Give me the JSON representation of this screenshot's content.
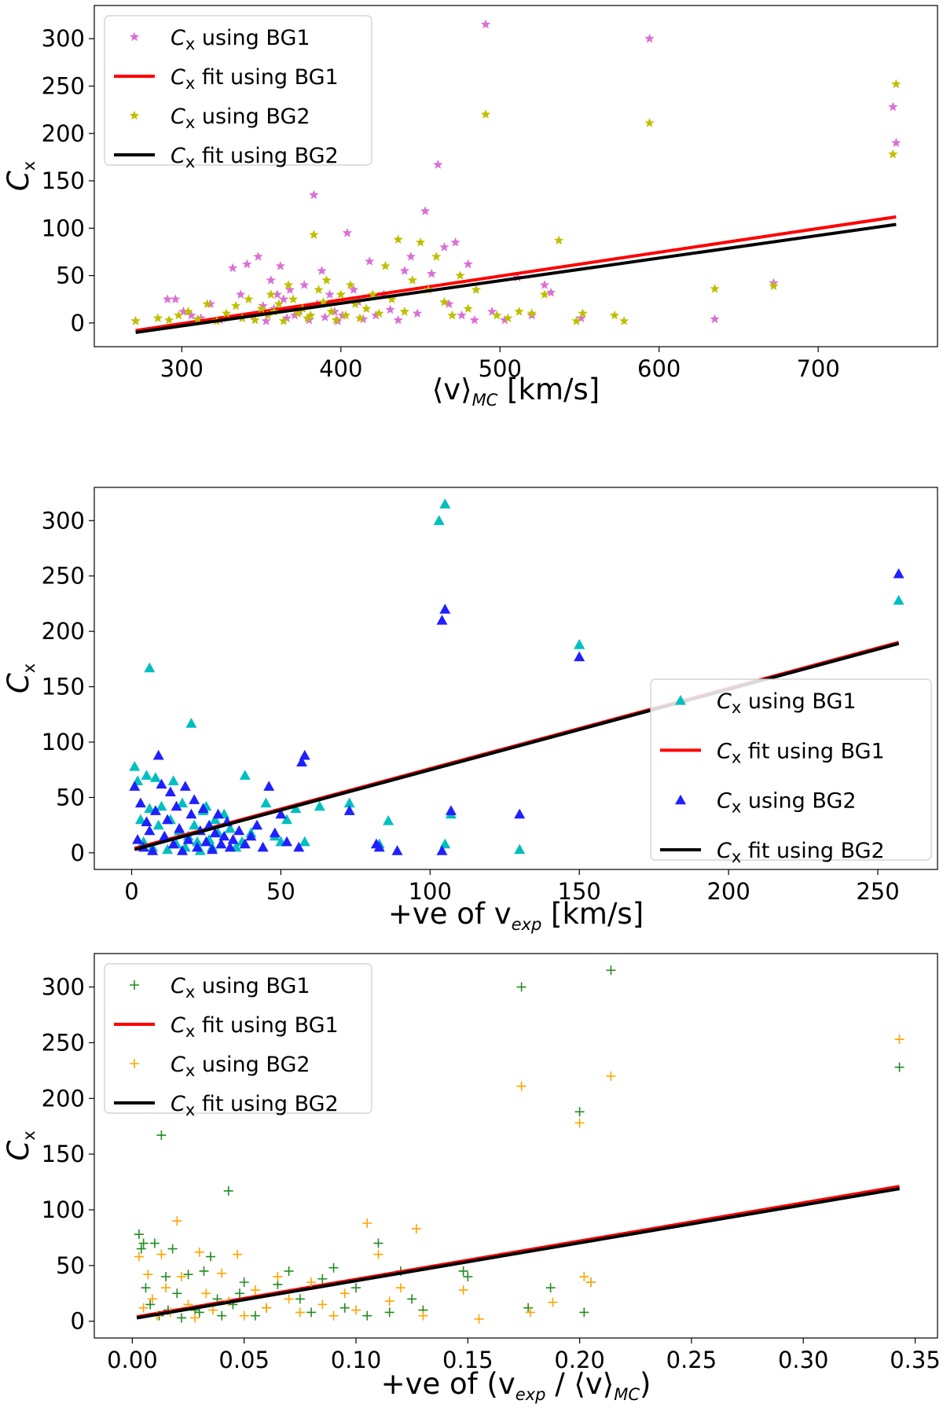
{
  "chart_data": [
    {
      "type": "scatter",
      "xlabel": "⟨v⟩",
      "xlabel_sub": "MC",
      "xlabel_unit": " [km/s]",
      "ylabel": "C",
      "ylabel_sub": "x",
      "xlim": [
        245,
        775
      ],
      "ylim": [
        -25,
        335
      ],
      "xticks": [
        300,
        400,
        500,
        600,
        700
      ],
      "yticks": [
        0,
        50,
        100,
        150,
        200,
        250,
        300
      ],
      "legend_position": "upper-left",
      "series": [
        {
          "name": "C",
          "name_sub": "x",
          "label_rest": " using BG1",
          "kind": "points",
          "marker": "star",
          "color": "#da70d6",
          "x": [
            271,
            291,
            296,
            301,
            306,
            312,
            318,
            324,
            332,
            337,
            341,
            345,
            348,
            351,
            353,
            356,
            358,
            360,
            362,
            364,
            366,
            368,
            371,
            374,
            377,
            380,
            383,
            385,
            388,
            390,
            393,
            396,
            398,
            401,
            404,
            408,
            411,
            414,
            418,
            422,
            427,
            431,
            436,
            440,
            444,
            448,
            453,
            457,
            461,
            465,
            468,
            472,
            476,
            480,
            484,
            491,
            495,
            503,
            511,
            520,
            528,
            532,
            551,
            594,
            635,
            672,
            747,
            749
          ],
          "y": [
            2,
            25,
            25,
            12,
            8,
            5,
            20,
            3,
            58,
            30,
            62,
            8,
            70,
            18,
            2,
            45,
            15,
            30,
            60,
            25,
            5,
            35,
            8,
            12,
            40,
            3,
            135,
            20,
            55,
            6,
            30,
            12,
            2,
            8,
            95,
            35,
            22,
            4,
            65,
            8,
            30,
            14,
            3,
            55,
            70,
            10,
            118,
            52,
            167,
            80,
            20,
            85,
            8,
            62,
            3,
            315,
            12,
            3,
            48,
            8,
            40,
            32,
            5,
            300,
            4,
            42,
            228,
            190
          ]
        },
        {
          "name": "C",
          "name_sub": "x",
          "label_rest": " fit using BG1",
          "kind": "line",
          "color": "#ff0000",
          "width": 4,
          "x": [
            271,
            749
          ],
          "y": [
            -8,
            112
          ]
        },
        {
          "name": "C",
          "name_sub": "x",
          "label_rest": " using BG2",
          "kind": "points",
          "marker": "star",
          "color": "#bfbf00",
          "x": [
            271,
            285,
            292,
            298,
            304,
            310,
            316,
            322,
            328,
            334,
            338,
            342,
            346,
            350,
            354,
            356,
            358,
            361,
            364,
            367,
            370,
            373,
            376,
            379,
            381,
            383,
            386,
            389,
            391,
            394,
            397,
            400,
            403,
            406,
            409,
            412,
            416,
            420,
            424,
            428,
            432,
            436,
            440,
            445,
            450,
            455,
            460,
            465,
            470,
            475,
            480,
            485,
            491,
            498,
            505,
            512,
            520,
            528,
            537,
            548,
            552,
            572,
            578,
            594,
            635,
            672,
            747,
            749
          ],
          "y": [
            2,
            5,
            3,
            8,
            12,
            4,
            20,
            2,
            10,
            18,
            5,
            25,
            3,
            15,
            8,
            30,
            12,
            20,
            2,
            40,
            25,
            10,
            15,
            5,
            8,
            93,
            35,
            22,
            45,
            12,
            3,
            30,
            8,
            40,
            20,
            5,
            15,
            30,
            10,
            60,
            25,
            88,
            12,
            45,
            85,
            35,
            70,
            22,
            8,
            50,
            15,
            35,
            220,
            8,
            5,
            12,
            10,
            30,
            87,
            2,
            10,
            8,
            2,
            211,
            36,
            39,
            178,
            252
          ]
        },
        {
          "name": "C",
          "name_sub": "x",
          "label_rest": " fit using BG2",
          "kind": "line",
          "color": "#000000",
          "width": 4,
          "x": [
            271,
            749
          ],
          "y": [
            -10,
            104
          ]
        }
      ]
    },
    {
      "type": "scatter",
      "xlabel": "+ve of v",
      "xlabel_sub": "exp",
      "xlabel_unit": " [km/s]",
      "ylabel": "C",
      "ylabel_sub": "x",
      "xlim": [
        -12.5,
        270
      ],
      "ylim": [
        -15,
        330
      ],
      "xticks": [
        0,
        50,
        100,
        150,
        200,
        250
      ],
      "yticks": [
        0,
        50,
        100,
        150,
        200,
        250,
        300
      ],
      "legend_position": "lower-right",
      "series": [
        {
          "name": "C",
          "name_sub": "x",
          "label_rest": " using BG1",
          "kind": "points",
          "marker": "triangle",
          "color": "#00bfbf",
          "x": [
            1,
            2,
            3,
            4,
            5,
            6,
            6,
            7,
            8,
            9,
            10,
            11,
            12,
            13,
            14,
            15,
            16,
            17,
            18,
            19,
            20,
            21,
            22,
            23,
            24,
            25,
            26,
            27,
            28,
            29,
            30,
            31,
            33,
            35,
            37,
            38,
            40,
            42,
            45,
            48,
            50,
            52,
            55,
            58,
            63,
            73,
            83,
            86,
            103,
            105,
            105,
            107,
            150,
            150,
            130,
            257
          ],
          "y": [
            78,
            65,
            30,
            10,
            70,
            40,
            167,
            5,
            68,
            25,
            42,
            15,
            3,
            30,
            65,
            8,
            20,
            45,
            5,
            15,
            117,
            25,
            10,
            2,
            38,
            42,
            12,
            5,
            30,
            18,
            8,
            35,
            22,
            5,
            10,
            70,
            18,
            25,
            45,
            15,
            10,
            30,
            40,
            10,
            42,
            45,
            8,
            29,
            300,
            315,
            8,
            35,
            188,
            188,
            3,
            228
          ]
        },
        {
          "name": "C",
          "name_sub": "x",
          "label_rest": " fit using BG1",
          "kind": "line",
          "color": "#ff0000",
          "width": 4,
          "x": [
            1,
            257
          ],
          "y": [
            4,
            190
          ]
        },
        {
          "name": "C",
          "name_sub": "x",
          "label_rest": " using BG2",
          "kind": "points",
          "marker": "triangle",
          "color": "#2020ff",
          "x": [
            1,
            2,
            3,
            4,
            5,
            6,
            7,
            8,
            9,
            10,
            11,
            12,
            13,
            14,
            15,
            16,
            17,
            18,
            19,
            20,
            21,
            22,
            23,
            24,
            25,
            26,
            27,
            28,
            29,
            30,
            31,
            32,
            33,
            34,
            36,
            38,
            40,
            42,
            44,
            46,
            48,
            50,
            52,
            56,
            57,
            58,
            73,
            82,
            83,
            89,
            104,
            104,
            105,
            107,
            130,
            150,
            257
          ],
          "y": [
            60,
            12,
            45,
            5,
            28,
            20,
            2,
            38,
            88,
            62,
            15,
            30,
            55,
            8,
            42,
            22,
            2,
            60,
            12,
            35,
            48,
            5,
            20,
            40,
            10,
            25,
            3,
            18,
            35,
            8,
            15,
            28,
            5,
            12,
            20,
            8,
            15,
            25,
            5,
            60,
            18,
            35,
            10,
            5,
            82,
            88,
            38,
            8,
            5,
            2,
            210,
            2,
            220,
            38,
            35,
            177,
            252
          ]
        },
        {
          "name": "C",
          "name_sub": "x",
          "label_rest": " fit using BG2",
          "kind": "line",
          "color": "#000000",
          "width": 4,
          "x": [
            1,
            257
          ],
          "y": [
            3,
            189
          ]
        }
      ]
    },
    {
      "type": "scatter",
      "xlabel": "+ve of (v",
      "xlabel_sub": "exp",
      "xlabel_mid": " / ⟨v⟩",
      "xlabel_sub2": "MC",
      "xlabel_unit": ")",
      "ylabel": "C",
      "ylabel_sub": "x",
      "xlim": [
        -0.017,
        0.36
      ],
      "ylim": [
        -15,
        330
      ],
      "xticks": [
        0.0,
        0.05,
        0.1,
        0.15,
        0.2,
        0.25,
        0.3,
        0.35
      ],
      "xtick_labels": [
        "0.00",
        "0.05",
        "0.10",
        "0.15",
        "0.20",
        "0.25",
        "0.30",
        "0.35"
      ],
      "yticks": [
        0,
        50,
        100,
        150,
        200,
        250,
        300
      ],
      "legend_position": "upper-left",
      "series": [
        {
          "name": "C",
          "name_sub": "x",
          "label_rest": " using BG1",
          "kind": "points",
          "marker": "plus",
          "color": "#228b22",
          "x": [
            0.003,
            0.004,
            0.005,
            0.006,
            0.008,
            0.01,
            0.012,
            0.013,
            0.015,
            0.016,
            0.018,
            0.02,
            0.022,
            0.025,
            0.028,
            0.03,
            0.032,
            0.035,
            0.038,
            0.04,
            0.043,
            0.045,
            0.048,
            0.05,
            0.055,
            0.06,
            0.065,
            0.07,
            0.075,
            0.08,
            0.085,
            0.09,
            0.095,
            0.1,
            0.105,
            0.11,
            0.115,
            0.12,
            0.125,
            0.13,
            0.148,
            0.15,
            0.174,
            0.177,
            0.187,
            0.2,
            0.202,
            0.205,
            0.214,
            0.343
          ],
          "y": [
            78,
            65,
            70,
            30,
            15,
            70,
            5,
            167,
            40,
            10,
            65,
            25,
            3,
            42,
            10,
            8,
            45,
            58,
            20,
            5,
            117,
            15,
            25,
            35,
            5,
            12,
            33,
            45,
            20,
            8,
            38,
            48,
            12,
            30,
            5,
            70,
            8,
            45,
            20,
            10,
            45,
            40,
            300,
            12,
            30,
            188,
            8,
            35,
            315,
            228
          ]
        },
        {
          "name": "C",
          "name_sub": "x",
          "label_rest": " fit using BG1",
          "kind": "line",
          "color": "#ff0000",
          "width": 4,
          "x": [
            0.002,
            0.343
          ],
          "y": [
            4,
            121
          ]
        },
        {
          "name": "C",
          "name_sub": "x",
          "label_rest": " using BG2",
          "kind": "points",
          "marker": "plus",
          "color": "#ffa500",
          "x": [
            0.003,
            0.005,
            0.007,
            0.009,
            0.011,
            0.013,
            0.015,
            0.017,
            0.02,
            0.022,
            0.025,
            0.028,
            0.03,
            0.033,
            0.036,
            0.04,
            0.043,
            0.047,
            0.05,
            0.055,
            0.06,
            0.065,
            0.07,
            0.075,
            0.08,
            0.085,
            0.09,
            0.095,
            0.1,
            0.105,
            0.11,
            0.115,
            0.12,
            0.127,
            0.13,
            0.148,
            0.155,
            0.174,
            0.178,
            0.188,
            0.2,
            0.202,
            0.205,
            0.214,
            0.343
          ],
          "y": [
            58,
            12,
            42,
            20,
            5,
            60,
            30,
            8,
            90,
            40,
            15,
            3,
            62,
            25,
            10,
            43,
            18,
            60,
            5,
            28,
            12,
            40,
            20,
            8,
            35,
            15,
            5,
            25,
            10,
            88,
            60,
            18,
            30,
            83,
            5,
            28,
            2,
            211,
            8,
            17,
            178,
            40,
            35,
            220,
            253
          ]
        },
        {
          "name": "C",
          "name_sub": "x",
          "label_rest": " fit using BG2",
          "kind": "line",
          "color": "#000000",
          "width": 4,
          "x": [
            0.002,
            0.343
          ],
          "y": [
            3,
            119
          ]
        }
      ]
    }
  ]
}
